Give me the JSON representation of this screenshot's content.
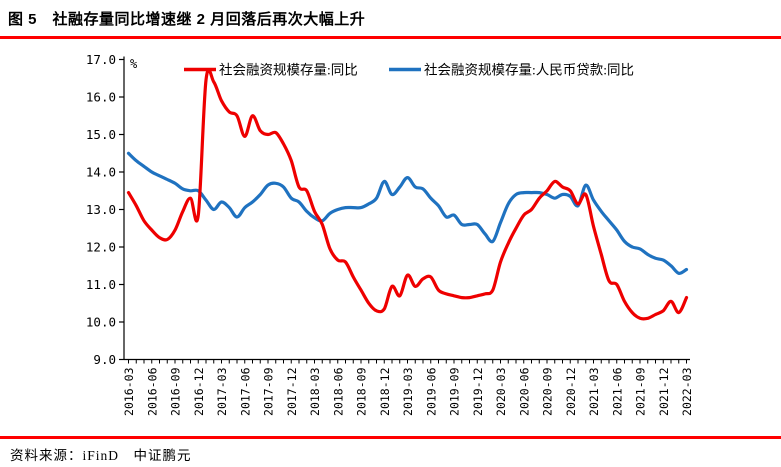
{
  "header": {
    "title": "图 5　社融存量同比增速继 2 月回落后再次大幅上升",
    "rule_color": "#ff0000"
  },
  "footer": {
    "source": "资料来源：iFinD　中证鹏元",
    "rule_color": "#ff0000"
  },
  "chart_data": {
    "type": "line",
    "title": "",
    "unit_label": "%",
    "grid": false,
    "legend_position": "top",
    "axis_color": "#000000",
    "y_min": 9,
    "y_max": 17,
    "y_step": 1,
    "y_tick_labels": [
      "9.0",
      "10.0",
      "11.0",
      "12.0",
      "13.0",
      "14.0",
      "15.0",
      "16.0",
      "17.0"
    ],
    "x_label_every": 3,
    "x": [
      "2016-03",
      "2016-04",
      "2016-05",
      "2016-06",
      "2016-07",
      "2016-08",
      "2016-09",
      "2016-10",
      "2016-11",
      "2016-12",
      "2017-01",
      "2017-02",
      "2017-03",
      "2017-04",
      "2017-05",
      "2017-06",
      "2017-07",
      "2017-08",
      "2017-09",
      "2017-10",
      "2017-11",
      "2017-12",
      "2018-01",
      "2018-02",
      "2018-03",
      "2018-04",
      "2018-05",
      "2018-06",
      "2018-07",
      "2018-08",
      "2018-09",
      "2018-10",
      "2018-11",
      "2018-12",
      "2019-01",
      "2019-02",
      "2019-03",
      "2019-04",
      "2019-05",
      "2019-06",
      "2019-07",
      "2019-08",
      "2019-09",
      "2019-10",
      "2019-11",
      "2019-12",
      "2020-01",
      "2020-02",
      "2020-03",
      "2020-04",
      "2020-05",
      "2020-06",
      "2020-07",
      "2020-08",
      "2020-09",
      "2020-10",
      "2020-11",
      "2020-12",
      "2021-01",
      "2021-02",
      "2021-03",
      "2021-04",
      "2021-05",
      "2021-06",
      "2021-07",
      "2021-08",
      "2021-09",
      "2021-10",
      "2021-11",
      "2021-12",
      "2022-01",
      "2022-02",
      "2022-03"
    ],
    "series": [
      {
        "name": "社会融资规模存量:同比",
        "color": "#ee0000",
        "values": [
          13.45,
          13.1,
          12.7,
          12.45,
          12.25,
          12.2,
          12.45,
          12.95,
          13.3,
          12.85,
          16.45,
          16.4,
          15.9,
          15.6,
          15.5,
          14.95,
          15.5,
          15.1,
          15.0,
          15.05,
          14.75,
          14.3,
          13.6,
          13.5,
          12.95,
          12.6,
          11.95,
          11.65,
          11.6,
          11.2,
          10.85,
          10.5,
          10.3,
          10.35,
          10.95,
          10.7,
          11.25,
          10.95,
          11.15,
          11.2,
          10.85,
          10.75,
          10.7,
          10.65,
          10.65,
          10.7,
          10.75,
          10.85,
          11.6,
          12.1,
          12.5,
          12.85,
          13.0,
          13.3,
          13.5,
          13.75,
          13.6,
          13.5,
          13.15,
          13.4,
          12.55,
          11.8,
          11.1,
          11.0,
          10.55,
          10.25,
          10.1,
          10.1,
          10.2,
          10.3,
          10.55,
          10.25,
          10.65
        ]
      },
      {
        "name": "社会融资规模存量:人民币贷款:同比",
        "color": "#1f72c0",
        "values": [
          14.5,
          14.3,
          14.15,
          14.0,
          13.9,
          13.8,
          13.7,
          13.55,
          13.5,
          13.5,
          13.25,
          13.0,
          13.2,
          13.05,
          12.8,
          13.05,
          13.2,
          13.4,
          13.65,
          13.7,
          13.6,
          13.3,
          13.2,
          12.95,
          12.78,
          12.7,
          12.9,
          13.0,
          13.05,
          13.05,
          13.05,
          13.15,
          13.3,
          13.75,
          13.4,
          13.6,
          13.85,
          13.6,
          13.55,
          13.3,
          13.1,
          12.8,
          12.85,
          12.6,
          12.6,
          12.6,
          12.35,
          12.15,
          12.65,
          13.15,
          13.4,
          13.45,
          13.45,
          13.45,
          13.4,
          13.3,
          13.4,
          13.35,
          13.1,
          13.65,
          13.25,
          12.95,
          12.7,
          12.45,
          12.15,
          12.0,
          11.95,
          11.8,
          11.7,
          11.65,
          11.5,
          11.3,
          11.4
        ]
      }
    ]
  }
}
